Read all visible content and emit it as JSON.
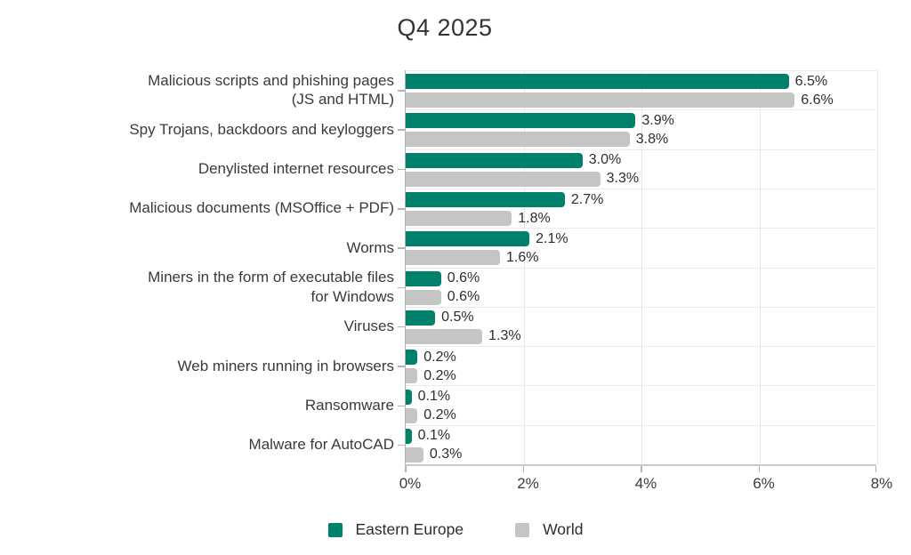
{
  "chart_data": {
    "type": "bar",
    "orientation": "horizontal",
    "title": "Q4 2025",
    "categories": [
      "Malicious scripts and phishing pages\n(JS and HTML)",
      "Spy Trojans, backdoors and keyloggers",
      "Denylisted internet resources",
      "Malicious documents (MSOffice + PDF)",
      "Worms",
      "Miners in the form of executable files\nfor Windows",
      "Viruses",
      "Web miners running in browsers",
      "Ransomware",
      "Malware for AutoCAD"
    ],
    "series": [
      {
        "name": "Eastern Europe",
        "color": "#00816B",
        "values": [
          6.5,
          3.9,
          3.0,
          2.7,
          2.1,
          0.6,
          0.5,
          0.2,
          0.1,
          0.1
        ],
        "labels": [
          "6.5%",
          "3.9%",
          "3.0%",
          "2.7%",
          "2.1%",
          "0.6%",
          "0.5%",
          "0.2%",
          "0.1%",
          "0.1%"
        ]
      },
      {
        "name": "World",
        "color": "#C5C5C5",
        "values": [
          6.6,
          3.8,
          3.3,
          1.8,
          1.6,
          0.6,
          1.3,
          0.2,
          0.2,
          0.3
        ],
        "labels": [
          "6.6%",
          "3.8%",
          "3.3%",
          "1.8%",
          "1.6%",
          "0.6%",
          "1.3%",
          "0.2%",
          "0.2%",
          "0.3%"
        ]
      }
    ],
    "xlim": [
      0,
      8
    ],
    "x_tick_values": [
      0,
      2,
      4,
      6,
      8
    ],
    "x_tick_labels": [
      "0%",
      "2%",
      "4%",
      "6%",
      "8%"
    ],
    "value_suffix": "%",
    "grid": "vertical",
    "legend_position": "bottom"
  }
}
